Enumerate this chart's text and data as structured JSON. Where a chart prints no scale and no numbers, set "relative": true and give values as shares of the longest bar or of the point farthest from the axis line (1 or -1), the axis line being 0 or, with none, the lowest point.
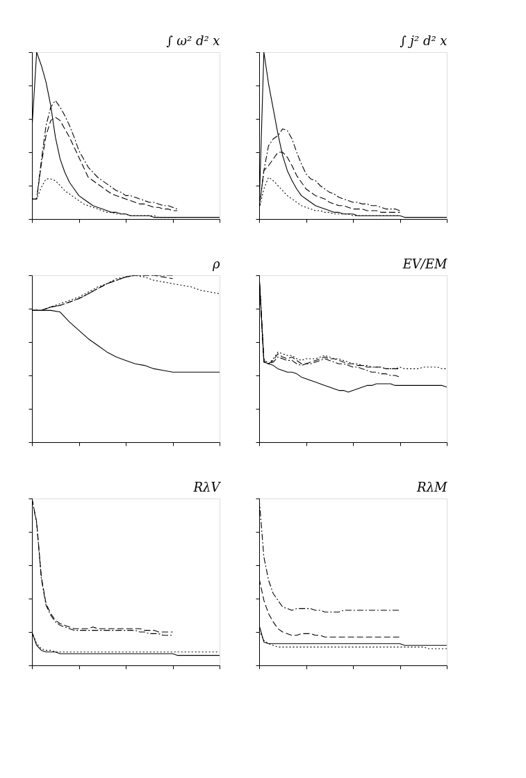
{
  "chart_data": [
    {
      "type": "line",
      "title": "∫ ω² d² x",
      "relative": true,
      "tick_labels": false,
      "grid": false,
      "categories": [
        null,
        null,
        null,
        null,
        null,
        null,
        null,
        null,
        null,
        null,
        null,
        null,
        null,
        null,
        null,
        null,
        null,
        null,
        null,
        null,
        null,
        null,
        null,
        null,
        null,
        null,
        null,
        null,
        null,
        null,
        null,
        null,
        null,
        null,
        null,
        null,
        null,
        null,
        null,
        null,
        null
      ],
      "series": [
        {
          "color": "#000000",
          "line_style": "solid",
          "values": [
            0.54,
            1.0,
            0.92,
            0.82,
            0.68,
            0.49,
            0.36,
            0.28,
            0.22,
            0.18,
            0.14,
            0.12,
            0.1,
            0.08,
            0.07,
            0.06,
            0.05,
            0.04,
            0.04,
            0.03,
            0.03,
            0.02,
            0.02,
            0.02,
            0.02,
            0.02,
            0.01,
            0.01,
            0.01,
            0.01,
            0.01,
            0.01,
            0.01,
            0.01,
            0.01,
            0.01,
            0.01,
            0.01,
            0.01,
            0.01,
            0.01
          ]
        },
        {
          "color": "#000000",
          "line_style": "dashed",
          "values": [
            0.12,
            0.12,
            0.33,
            0.5,
            0.59,
            0.61,
            0.59,
            0.54,
            0.49,
            0.43,
            0.37,
            0.31,
            0.25,
            0.23,
            0.21,
            0.19,
            0.17,
            0.15,
            0.14,
            0.13,
            0.12,
            0.11,
            0.1,
            0.09,
            0.09,
            0.08,
            0.07,
            0.07,
            0.06,
            0.06,
            0.05,
            0.05,
            null,
            null,
            null,
            null,
            null,
            null,
            null,
            null,
            null
          ]
        },
        {
          "color": "#000000",
          "line_style": "dashdot",
          "values": [
            0.12,
            0.12,
            0.35,
            0.56,
            0.67,
            0.71,
            0.67,
            0.62,
            0.56,
            0.49,
            0.41,
            0.36,
            0.31,
            0.28,
            0.25,
            0.23,
            0.21,
            0.19,
            0.17,
            0.16,
            0.14,
            0.14,
            0.13,
            0.12,
            0.11,
            0.1,
            0.1,
            0.09,
            0.08,
            0.08,
            0.07,
            0.06,
            null,
            null,
            null,
            null,
            null,
            null,
            null,
            null,
            null
          ]
        },
        {
          "color": "#000000",
          "line_style": "dotted",
          "values": [
            0.12,
            0.12,
            0.19,
            0.24,
            0.24,
            0.23,
            0.2,
            0.17,
            0.15,
            0.13,
            0.11,
            0.09,
            0.08,
            0.07,
            0.06,
            0.05,
            0.04,
            0.04,
            0.03,
            0.03,
            0.03,
            0.02,
            0.02,
            0.02,
            0.02,
            0.02,
            0.02,
            0.01,
            0.01,
            0.01,
            0.01,
            0.01,
            null,
            null,
            null,
            null,
            null,
            null,
            null,
            null,
            null
          ]
        }
      ]
    },
    {
      "type": "line",
      "title": "∫ j² d² x",
      "relative": true,
      "tick_labels": false,
      "grid": false,
      "categories": [
        null,
        null,
        null,
        null,
        null,
        null,
        null,
        null,
        null,
        null,
        null,
        null,
        null,
        null,
        null,
        null,
        null,
        null,
        null,
        null,
        null,
        null,
        null,
        null,
        null,
        null,
        null,
        null,
        null,
        null,
        null,
        null,
        null,
        null,
        null,
        null,
        null,
        null,
        null,
        null,
        null
      ],
      "series": [
        {
          "color": "#000000",
          "line_style": "solid",
          "values": [
            0.06,
            1.0,
            0.81,
            0.66,
            0.51,
            0.38,
            0.29,
            0.23,
            0.18,
            0.14,
            0.12,
            0.1,
            0.08,
            0.07,
            0.06,
            0.05,
            0.04,
            0.04,
            0.03,
            0.03,
            0.03,
            0.02,
            0.02,
            0.02,
            0.02,
            0.02,
            0.02,
            0.02,
            0.02,
            0.02,
            0.02,
            0.01,
            0.01,
            0.01,
            0.01,
            0.01,
            0.01,
            0.01,
            0.01,
            0.01,
            0.01
          ]
        },
        {
          "color": "#000000",
          "line_style": "dashed",
          "values": [
            0.06,
            0.29,
            0.32,
            0.36,
            0.4,
            0.4,
            0.37,
            0.32,
            0.26,
            0.22,
            0.18,
            0.16,
            0.14,
            0.13,
            0.12,
            0.1,
            0.09,
            0.08,
            0.08,
            0.07,
            0.06,
            0.06,
            0.06,
            0.05,
            0.05,
            0.05,
            0.04,
            0.04,
            0.04,
            0.04,
            0.04,
            null,
            null,
            null,
            null,
            null,
            null,
            null,
            null,
            null,
            null
          ]
        },
        {
          "color": "#000000",
          "line_style": "dashdot",
          "values": [
            0.06,
            0.29,
            0.44,
            0.48,
            0.5,
            0.54,
            0.53,
            0.48,
            0.4,
            0.33,
            0.27,
            0.24,
            0.23,
            0.2,
            0.18,
            0.16,
            0.15,
            0.13,
            0.12,
            0.11,
            0.1,
            0.1,
            0.09,
            0.09,
            0.08,
            0.08,
            0.07,
            0.06,
            0.06,
            0.06,
            0.05,
            null,
            null,
            null,
            null,
            null,
            null,
            null,
            null,
            null,
            null
          ]
        },
        {
          "color": "#000000",
          "line_style": "dotted",
          "values": [
            0.06,
            0.18,
            0.25,
            0.23,
            0.2,
            0.17,
            0.14,
            0.12,
            0.1,
            0.08,
            0.07,
            0.06,
            0.05,
            0.05,
            0.04,
            0.04,
            0.03,
            0.03,
            0.03,
            0.03,
            0.02,
            0.02,
            0.02,
            0.02,
            0.02,
            0.02,
            0.02,
            0.02,
            0.02,
            0.02,
            0.02,
            null,
            null,
            null,
            null,
            null,
            null,
            null,
            null,
            null,
            null
          ]
        }
      ]
    },
    {
      "type": "line",
      "title": "ρ",
      "relative": true,
      "tick_labels": false,
      "grid": false,
      "categories": [
        null,
        null,
        null,
        null,
        null,
        null,
        null,
        null,
        null,
        null,
        null,
        null,
        null,
        null,
        null,
        null,
        null,
        null,
        null,
        null,
        null
      ],
      "series": [
        {
          "color": "#000000",
          "line_style": "solid",
          "values": [
            0.79,
            0.79,
            0.79,
            0.78,
            0.72,
            0.67,
            0.62,
            0.58,
            0.54,
            0.51,
            0.49,
            0.47,
            0.46,
            0.44,
            0.43,
            0.42,
            0.42,
            0.42,
            0.42,
            0.42,
            0.42
          ]
        },
        {
          "color": "#000000",
          "line_style": "dashed",
          "values": [
            0.79,
            0.79,
            0.81,
            0.82,
            0.84,
            0.86,
            0.89,
            0.92,
            0.95,
            0.97,
            0.99,
            1.0,
            1.0,
            1.0,
            0.99,
            0.98,
            null,
            null,
            null,
            null,
            null
          ]
        },
        {
          "color": "#000000",
          "line_style": "dashdot",
          "values": [
            0.79,
            0.79,
            0.81,
            0.82,
            0.84,
            0.86,
            0.89,
            0.92,
            0.95,
            0.97,
            0.99,
            1.0,
            1.0,
            1.0,
            1.0,
            1.0,
            null,
            null,
            null,
            null,
            null
          ]
        },
        {
          "color": "#000000",
          "line_style": "dotted",
          "values": [
            0.79,
            0.79,
            0.81,
            0.83,
            0.85,
            0.87,
            0.9,
            0.93,
            0.95,
            0.98,
            0.99,
            1.0,
            0.99,
            0.97,
            0.96,
            0.95,
            0.94,
            0.93,
            0.91,
            0.9,
            0.89
          ]
        }
      ]
    },
    {
      "type": "line",
      "title": "EV/EM",
      "relative": true,
      "tick_labels": false,
      "grid": false,
      "categories": [
        null,
        null,
        null,
        null,
        null,
        null,
        null,
        null,
        null,
        null,
        null,
        null,
        null,
        null,
        null,
        null,
        null,
        null,
        null,
        null,
        null,
        null,
        null,
        null,
        null,
        null,
        null,
        null,
        null,
        null,
        null,
        null,
        null,
        null,
        null,
        null,
        null,
        null,
        null,
        null,
        null
      ],
      "series": [
        {
          "color": "#000000",
          "line_style": "solid",
          "values": [
            1.0,
            0.48,
            0.47,
            0.46,
            0.44,
            0.43,
            0.42,
            0.42,
            0.41,
            0.39,
            0.38,
            0.37,
            0.36,
            0.35,
            0.34,
            0.33,
            0.32,
            0.31,
            0.31,
            0.3,
            0.31,
            0.32,
            0.33,
            0.34,
            0.34,
            0.35,
            0.35,
            0.35,
            0.35,
            0.34,
            0.34,
            0.34,
            0.34,
            0.34,
            0.34,
            0.34,
            0.34,
            0.34,
            0.34,
            0.34,
            0.33
          ]
        },
        {
          "color": "#000000",
          "line_style": "dashed",
          "values": [
            1.0,
            0.49,
            0.47,
            0.49,
            0.53,
            0.51,
            0.5,
            0.51,
            0.49,
            0.47,
            0.47,
            0.48,
            0.49,
            0.5,
            0.51,
            0.5,
            0.5,
            0.49,
            0.48,
            0.47,
            0.47,
            0.46,
            0.46,
            0.45,
            0.45,
            0.45,
            0.45,
            0.44,
            0.44,
            0.44,
            0.44,
            null,
            null,
            null,
            null,
            null,
            null,
            null,
            null,
            null,
            null
          ]
        },
        {
          "color": "#000000",
          "line_style": "dashdot",
          "values": [
            1.0,
            0.48,
            0.47,
            0.48,
            0.51,
            0.5,
            0.49,
            0.49,
            0.47,
            0.46,
            0.47,
            0.47,
            0.48,
            0.49,
            0.5,
            0.49,
            0.48,
            0.47,
            0.47,
            0.46,
            0.45,
            0.45,
            0.44,
            0.43,
            0.42,
            0.42,
            0.41,
            0.41,
            0.4,
            0.4,
            0.39,
            null,
            null,
            null,
            null,
            null,
            null,
            null,
            null,
            null,
            null
          ]
        },
        {
          "color": "#000000",
          "line_style": "dotted",
          "values": [
            1.0,
            0.5,
            0.47,
            0.5,
            0.54,
            0.53,
            0.52,
            0.52,
            0.5,
            0.49,
            0.5,
            0.5,
            0.5,
            0.51,
            0.52,
            0.51,
            0.5,
            0.5,
            0.49,
            0.48,
            0.47,
            0.47,
            0.46,
            0.46,
            0.45,
            0.45,
            0.45,
            0.44,
            0.44,
            0.44,
            0.45,
            0.44,
            0.44,
            0.44,
            0.44,
            0.45,
            0.45,
            0.45,
            0.45,
            0.44,
            0.44
          ]
        }
      ]
    },
    {
      "type": "line",
      "title": "RλV",
      "relative": true,
      "tick_labels": false,
      "grid": false,
      "categories": [
        null,
        null,
        null,
        null,
        null,
        null,
        null,
        null,
        null,
        null,
        null,
        null,
        null,
        null,
        null,
        null,
        null,
        null,
        null,
        null,
        null,
        null,
        null,
        null,
        null,
        null,
        null,
        null,
        null,
        null,
        null,
        null,
        null,
        null,
        null,
        null,
        null,
        null,
        null,
        null,
        null
      ],
      "series": [
        {
          "color": "#000000",
          "line_style": "solid",
          "values": [
            0.2,
            0.12,
            0.09,
            0.08,
            0.08,
            0.08,
            0.07,
            0.07,
            0.07,
            0.07,
            0.07,
            0.07,
            0.07,
            0.07,
            0.07,
            0.07,
            0.07,
            0.07,
            0.07,
            0.07,
            0.07,
            0.07,
            0.07,
            0.07,
            0.07,
            0.07,
            0.07,
            0.07,
            0.07,
            0.07,
            0.07,
            0.06,
            0.06,
            0.06,
            0.06,
            0.06,
            0.06,
            0.06,
            0.06,
            0.06,
            0.06
          ]
        },
        {
          "color": "#000000",
          "line_style": "dashed",
          "values": [
            1.0,
            0.86,
            0.53,
            0.37,
            0.31,
            0.27,
            0.25,
            0.24,
            0.23,
            0.22,
            0.22,
            0.22,
            0.22,
            0.23,
            0.22,
            0.22,
            0.22,
            0.22,
            0.22,
            0.22,
            0.22,
            0.22,
            0.22,
            0.22,
            0.21,
            0.21,
            0.21,
            0.2,
            0.2,
            0.2,
            0.2,
            null,
            null,
            null,
            null,
            null,
            null,
            null,
            null,
            null,
            null
          ]
        },
        {
          "color": "#000000",
          "line_style": "dashdot",
          "values": [
            1.0,
            0.85,
            0.52,
            0.36,
            0.3,
            0.26,
            0.24,
            0.23,
            0.22,
            0.21,
            0.21,
            0.21,
            0.21,
            0.21,
            0.21,
            0.21,
            0.21,
            0.21,
            0.21,
            0.21,
            0.21,
            0.21,
            0.21,
            0.2,
            0.2,
            0.19,
            0.19,
            0.19,
            0.18,
            0.18,
            0.18,
            null,
            null,
            null,
            null,
            null,
            null,
            null,
            null,
            null,
            null
          ]
        },
        {
          "color": "#000000",
          "line_style": "dotted",
          "values": [
            0.2,
            0.13,
            0.1,
            0.09,
            0.09,
            0.08,
            0.08,
            0.08,
            0.08,
            0.08,
            0.08,
            0.08,
            0.08,
            0.08,
            0.08,
            0.08,
            0.08,
            0.08,
            0.08,
            0.08,
            0.08,
            0.08,
            0.08,
            0.08,
            0.08,
            0.08,
            0.08,
            0.08,
            0.08,
            0.08,
            0.08,
            0.08,
            0.08,
            0.08,
            0.08,
            0.08,
            0.08,
            0.08,
            0.08,
            0.08,
            0.08
          ]
        }
      ]
    },
    {
      "type": "line",
      "title": "RλM",
      "relative": true,
      "tick_labels": false,
      "grid": false,
      "categories": [
        null,
        null,
        null,
        null,
        null,
        null,
        null,
        null,
        null,
        null,
        null,
        null,
        null,
        null,
        null,
        null,
        null,
        null,
        null,
        null,
        null,
        null,
        null,
        null,
        null,
        null,
        null,
        null,
        null,
        null,
        null,
        null,
        null,
        null,
        null,
        null,
        null,
        null,
        null,
        null,
        null
      ],
      "series": [
        {
          "color": "#000000",
          "line_style": "solid",
          "values": [
            0.24,
            0.14,
            0.13,
            0.13,
            0.13,
            0.13,
            0.13,
            0.13,
            0.13,
            0.13,
            0.13,
            0.13,
            0.13,
            0.13,
            0.13,
            0.13,
            0.13,
            0.13,
            0.13,
            0.13,
            0.13,
            0.13,
            0.13,
            0.13,
            0.13,
            0.13,
            0.13,
            0.13,
            0.13,
            0.13,
            0.13,
            0.12,
            0.12,
            0.12,
            0.12,
            0.12,
            0.12,
            0.12,
            0.12,
            0.12,
            0.12
          ]
        },
        {
          "color": "#000000",
          "line_style": "dashed",
          "values": [
            0.52,
            0.39,
            0.31,
            0.26,
            0.22,
            0.2,
            0.19,
            0.18,
            0.18,
            0.19,
            0.19,
            0.19,
            0.18,
            0.18,
            0.17,
            0.17,
            0.17,
            0.17,
            0.17,
            0.17,
            0.17,
            0.17,
            0.17,
            0.17,
            0.17,
            0.17,
            0.17,
            0.17,
            0.17,
            0.17,
            0.17,
            null,
            null,
            null,
            null,
            null,
            null,
            null,
            null,
            null,
            null
          ]
        },
        {
          "color": "#000000",
          "line_style": "dashdot",
          "values": [
            1.0,
            0.65,
            0.51,
            0.43,
            0.39,
            0.35,
            0.34,
            0.33,
            0.34,
            0.34,
            0.34,
            0.34,
            0.33,
            0.33,
            0.32,
            0.32,
            0.32,
            0.32,
            0.33,
            0.33,
            0.33,
            0.33,
            0.33,
            0.33,
            0.33,
            0.33,
            0.33,
            0.33,
            0.33,
            0.33,
            0.33,
            null,
            null,
            null,
            null,
            null,
            null,
            null,
            null,
            null,
            null
          ]
        },
        {
          "color": "#000000",
          "line_style": "dotted",
          "values": [
            0.21,
            0.15,
            0.13,
            0.12,
            0.11,
            0.11,
            0.11,
            0.11,
            0.11,
            0.11,
            0.11,
            0.11,
            0.11,
            0.11,
            0.11,
            0.11,
            0.11,
            0.11,
            0.11,
            0.11,
            0.11,
            0.11,
            0.11,
            0.11,
            0.11,
            0.11,
            0.11,
            0.11,
            0.11,
            0.11,
            0.11,
            0.11,
            0.11,
            0.11,
            0.11,
            0.11,
            0.1,
            0.1,
            0.1,
            0.1,
            0.1
          ]
        }
      ]
    }
  ]
}
